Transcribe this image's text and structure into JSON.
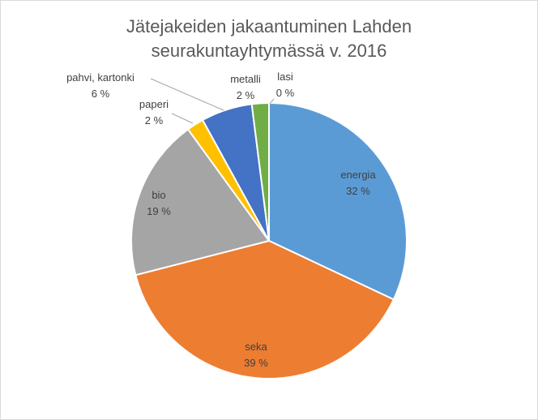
{
  "chart_data": {
    "type": "pie",
    "title_lines": [
      "Jätejakeiden jakaantuminen Lahden",
      "seurakuntayhtymässä  v. 2016"
    ],
    "slices": [
      {
        "label": "energia",
        "value": 32,
        "value_text": "32 %",
        "color": "#5B9BD5"
      },
      {
        "label": "seka",
        "value": 39,
        "value_text": "39 %",
        "color": "#ED7D31"
      },
      {
        "label": "bio",
        "value": 19,
        "value_text": "19 %",
        "color": "#A5A5A5"
      },
      {
        "label": "paperi",
        "value": 2,
        "value_text": "2 %",
        "color": "#FFC000"
      },
      {
        "label": "pahvi, kartonki",
        "value": 6,
        "value_text": "6 %",
        "color": "#4472C4"
      },
      {
        "label": "metalli",
        "value": 2,
        "value_text": "2 %",
        "color": "#70AD47"
      },
      {
        "label": "lasi",
        "value": 0,
        "value_text": "0 %",
        "color": "#264478"
      }
    ],
    "legend": "none"
  }
}
